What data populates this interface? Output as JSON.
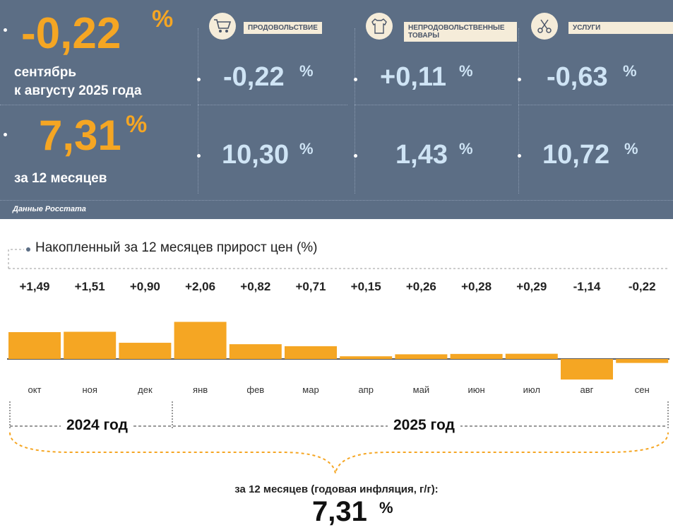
{
  "summary": {
    "month": {
      "value": "-0,22",
      "unit": "%",
      "line1": "сентябрь",
      "line2": "к августу 2025 года"
    },
    "annual": {
      "value": "7,31",
      "unit": "%",
      "label": "за 12 месяцев"
    },
    "source": "Данные Росстата"
  },
  "categories": [
    {
      "label": "ПРОДОВОЛЬСТВИЕ",
      "icon": "shopping-cart-icon",
      "month": "-0,22",
      "annual": "10,30",
      "unit": "%"
    },
    {
      "label": "НЕПРОДОВОЛЬСТВЕННЫЕ ТОВАРЫ",
      "icon": "clothes-icon",
      "month": "+0,11",
      "annual": "1,43",
      "unit": "%"
    },
    {
      "label": "УСЛУГИ",
      "icon": "scissors-icon",
      "month": "-0,63",
      "annual": "10,72",
      "unit": "%"
    }
  ],
  "chart_data": {
    "type": "bar",
    "title": "Накопленный за 12 месяцев прирост цен (%)",
    "categories": [
      "окт",
      "ноя",
      "дек",
      "янв",
      "фев",
      "мар",
      "апр",
      "май",
      "июн",
      "июл",
      "авг",
      "сен"
    ],
    "values": [
      1.49,
      1.51,
      0.9,
      2.06,
      0.82,
      0.71,
      0.15,
      0.26,
      0.28,
      0.29,
      -1.14,
      -0.22
    ],
    "value_labels": [
      "+1,49",
      "+1,51",
      "+0,90",
      "+2,06",
      "+0,82",
      "+0,71",
      "+0,15",
      "+0,26",
      "+0,28",
      "+0,29",
      "-1,14",
      "-0,22"
    ],
    "year_labels": [
      "2024 год",
      "2025 год"
    ],
    "bar_color": "#f5a623",
    "grid": false
  },
  "footer": {
    "text": "за 12 месяцев (годовая инфляция, г/г):",
    "value": "7,31",
    "unit": "%"
  },
  "colors": {
    "panel": "#5c6e85",
    "accent": "#f5a623",
    "value_blue": "#cfe4f5",
    "label_bg": "#f5ecd9"
  }
}
